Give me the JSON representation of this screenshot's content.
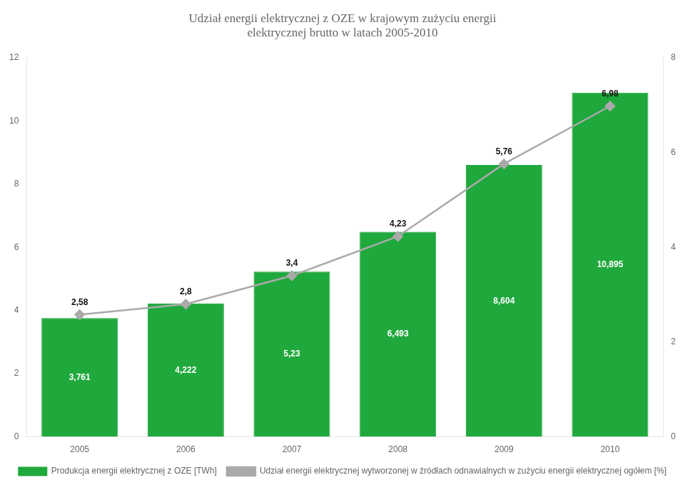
{
  "chart_data": {
    "type": "bar",
    "title": [
      "Udział energii elektrycznej z OZE w krajowym zużyciu energii",
      "elektrycznej brutto w latach 2005-2010"
    ],
    "categories": [
      "2005",
      "2006",
      "2007",
      "2008",
      "2009",
      "2010"
    ],
    "series": [
      {
        "name": "Produkcja energii elektrycznej z OZE [TWh]",
        "type": "bar",
        "color": "#1fa83c",
        "values": [
          3.761,
          4.222,
          5.23,
          6.493,
          8.604,
          10.895
        ],
        "value_labels": [
          "3,761",
          "4,222",
          "5,23",
          "6,493",
          "8,604",
          "10,895"
        ]
      },
      {
        "name": "Udział energii elektrycznej wytworzonej w źródłach odnawialnych w zużyciu energii elektrycznej ogółem [%]",
        "type": "line",
        "axis": "y2",
        "color": "#aaaaaa",
        "marker": "diamond",
        "values": [
          2.58,
          2.8,
          3.4,
          4.23,
          5.76,
          6.98
        ],
        "value_labels": [
          "2,58",
          "2,8",
          "3,4",
          "4,23",
          "5,76",
          "6,98"
        ]
      }
    ],
    "ylim": [
      0,
      12
    ],
    "yticks": [
      0,
      2,
      4,
      6,
      8,
      10,
      12
    ],
    "y2lim": [
      0,
      8
    ],
    "y2ticks": [
      0,
      2,
      4,
      6,
      8
    ],
    "grid": false,
    "legend": "bottom",
    "data_labels": true
  }
}
